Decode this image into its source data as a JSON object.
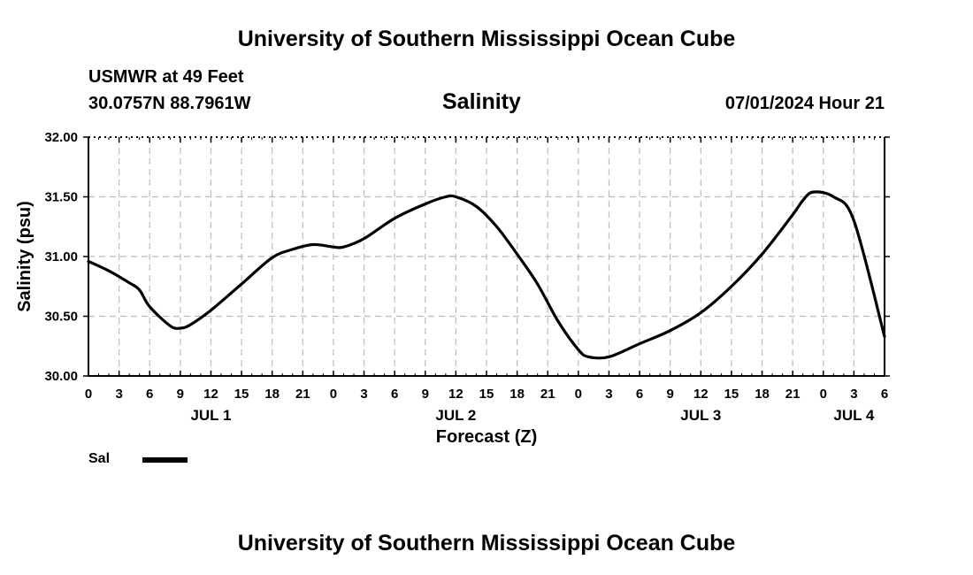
{
  "header": {
    "title": "University of Southern Mississippi Ocean Cube",
    "station": "USMWR at 49 Feet",
    "coords": "30.0757N  88.7961W",
    "datetime": "07/01/2024 Hour 21"
  },
  "footer": {
    "title": "University of Southern Mississippi Ocean Cube"
  },
  "legend": {
    "label": "Sal",
    "color": "#000000"
  },
  "chart_data": {
    "type": "line",
    "title": "Salinity",
    "xlabel": "Forecast (Z)",
    "ylabel": "Salinity (psu)",
    "xlim": [
      0,
      78
    ],
    "ylim": [
      30.0,
      32.0
    ],
    "ytick_values": [
      30.0,
      30.5,
      31.0,
      31.5,
      32.0
    ],
    "ytick_labels": [
      "30.00",
      "30.50",
      "31.00",
      "31.50",
      "32.00"
    ],
    "xtick_labels": [
      "0",
      "3",
      "6",
      "9",
      "12",
      "15",
      "18",
      "21",
      "0",
      "3",
      "6",
      "9",
      "12",
      "15",
      "18",
      "21",
      "0",
      "3",
      "6",
      "9",
      "12",
      "15",
      "18",
      "21",
      "0",
      "3",
      "6"
    ],
    "date_labels": [
      {
        "label": "JUL 1",
        "hour": 12
      },
      {
        "label": "JUL 2",
        "hour": 36
      },
      {
        "label": "JUL 3",
        "hour": 60
      },
      {
        "label": "JUL 4",
        "hour": 75
      }
    ],
    "grid": true,
    "series": [
      {
        "name": "Sal",
        "color": "#000000",
        "x": [
          0,
          2,
          4,
          5,
          6,
          8,
          9,
          10,
          12,
          15,
          18,
          20,
          22,
          24,
          25,
          27,
          30,
          33,
          35,
          36,
          38,
          40,
          42,
          44,
          46,
          48,
          49,
          51,
          54,
          57,
          60,
          63,
          66,
          69,
          70,
          71,
          73,
          75,
          78
        ],
        "y": [
          30.96,
          30.88,
          30.78,
          30.72,
          30.58,
          30.42,
          30.4,
          30.43,
          30.55,
          30.77,
          30.99,
          31.06,
          31.1,
          31.08,
          31.08,
          31.15,
          31.32,
          31.44,
          31.5,
          31.5,
          31.42,
          31.25,
          31.02,
          30.77,
          30.46,
          30.22,
          30.16,
          30.16,
          30.27,
          30.38,
          30.53,
          30.75,
          31.02,
          31.35,
          31.47,
          31.54,
          31.5,
          31.3,
          30.33
        ]
      }
    ]
  }
}
